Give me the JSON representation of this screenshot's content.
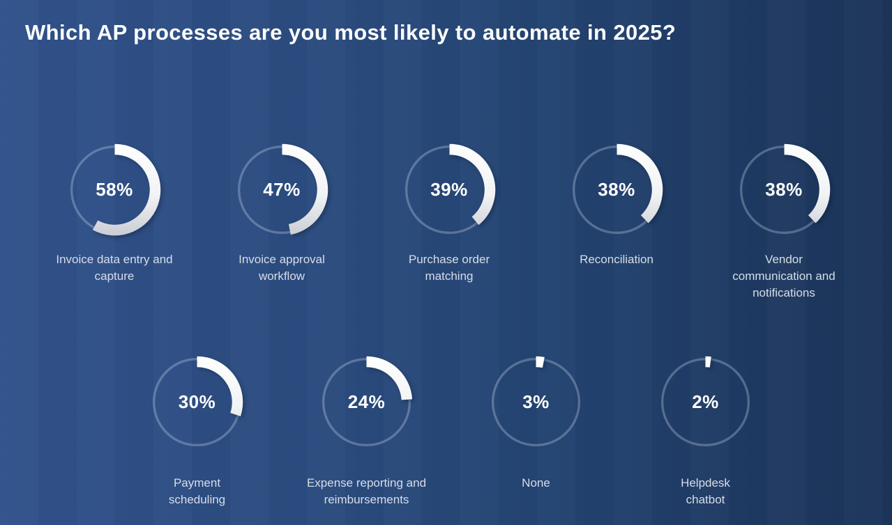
{
  "title": "Which AP processes are you most likely to automate in 2025?",
  "chart_data": {
    "type": "donut",
    "title": "Which AP processes are you most likely to automate in 2025?",
    "unit": "%",
    "value_range": [
      0,
      100
    ],
    "angle_start": "top",
    "direction": "clockwise",
    "legend_position": "none",
    "rows": [
      {
        "items": [
          {
            "label": "Invoice data entry and capture",
            "label_lines": [
              "Invoice data entry and",
              "capture"
            ],
            "value": 58,
            "display": "58%"
          },
          {
            "label": "Invoice approval workflow",
            "label_lines": [
              "Invoice approval",
              "workflow"
            ],
            "value": 47,
            "display": "47%"
          },
          {
            "label": "Purchase order matching",
            "label_lines": [
              "Purchase order",
              "matching"
            ],
            "value": 39,
            "display": "39%"
          },
          {
            "label": "Reconciliation",
            "label_lines": [
              "Reconciliation"
            ],
            "value": 38,
            "display": "38%"
          },
          {
            "label": "Vendor communication and notifications",
            "label_lines": [
              "Vendor",
              "communication and",
              "notifications"
            ],
            "value": 38,
            "display": "38%"
          }
        ]
      },
      {
        "items": [
          {
            "label": "Payment scheduling",
            "label_lines": [
              "Payment",
              "scheduling"
            ],
            "value": 30,
            "display": "30%"
          },
          {
            "label": "Expense reporting and reimbursements",
            "label_lines": [
              "Expense reporting and",
              "reimbursements"
            ],
            "value": 24,
            "display": "24%"
          },
          {
            "label": "None",
            "label_lines": [
              "None"
            ],
            "value": 3,
            "display": "3%"
          },
          {
            "label": "Helpdesk chatbot",
            "label_lines": [
              "Helpdesk",
              "chatbot"
            ],
            "value": 2,
            "display": "2%"
          }
        ]
      }
    ],
    "colors": {
      "background_gradient_left": "#31528b",
      "background_gradient_right": "#1c3459",
      "track": "rgba(226,235,250,0.28)",
      "arc_gradient_start": "#ffffff",
      "arc_gradient_mid": "#f2f3f5",
      "arc_gradient_end": "#c6cad1",
      "title_text": "#ffffff",
      "label_text": "#d7dde8",
      "value_text": "#ffffff"
    }
  }
}
